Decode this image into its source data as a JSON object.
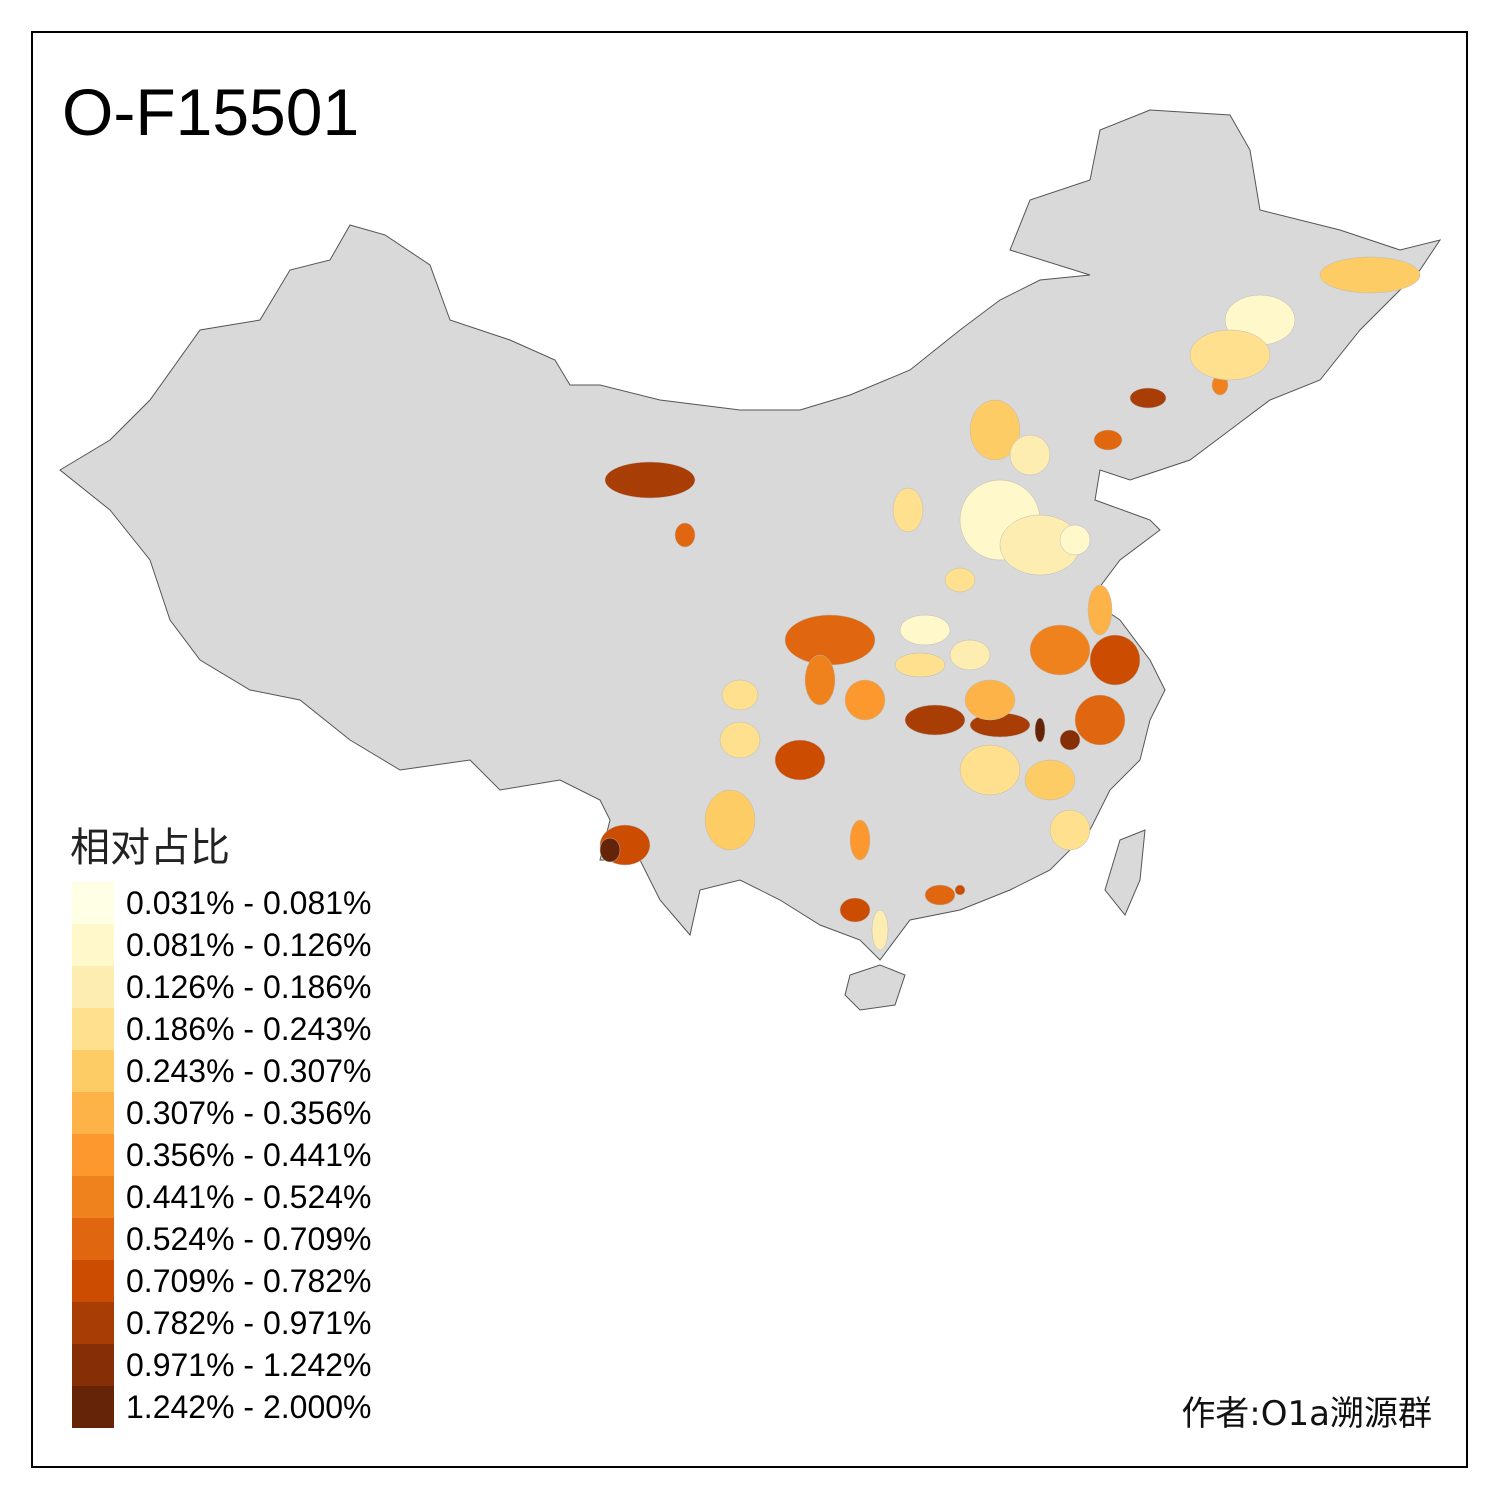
{
  "title": "O-F15501",
  "legend": {
    "title": "相对占比",
    "classes": [
      {
        "label": "0.031% - 0.081%",
        "color": "#FFFFE5"
      },
      {
        "label": "0.081% - 0.126%",
        "color": "#FFF8CB"
      },
      {
        "label": "0.126% - 0.186%",
        "color": "#FEEDB0"
      },
      {
        "label": "0.186% - 0.243%",
        "color": "#FEE08F"
      },
      {
        "label": "0.243% - 0.307%",
        "color": "#FECC65"
      },
      {
        "label": "0.307% - 0.356%",
        "color": "#FDB347"
      },
      {
        "label": "0.356% - 0.441%",
        "color": "#FC982E"
      },
      {
        "label": "0.441% - 0.524%",
        "color": "#F0821E"
      },
      {
        "label": "0.524% - 0.709%",
        "color": "#E0660F"
      },
      {
        "label": "0.709% - 0.782%",
        "color": "#CC4C02"
      },
      {
        "label": "0.782% - 0.971%",
        "color": "#A93D06"
      },
      {
        "label": "0.971% - 1.242%",
        "color": "#862F07"
      },
      {
        "label": "1.242% - 2.000%",
        "color": "#652408"
      }
    ]
  },
  "no_data_color": "#D9D9D9",
  "author": "作者:O1a溯源群"
}
